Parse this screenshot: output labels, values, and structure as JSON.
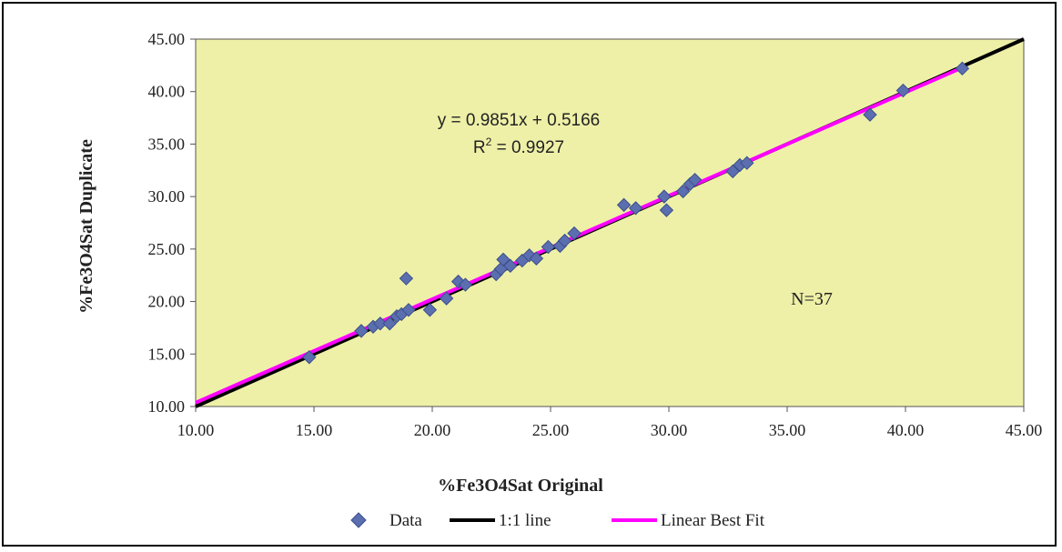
{
  "chart_data": {
    "type": "scatter",
    "xlabel": "%Fe3O4Sat Original",
    "ylabel": "%Fe3O4Sat Duplicate",
    "xlim": [
      10,
      45
    ],
    "ylim": [
      10,
      45
    ],
    "xticks": [
      10,
      15,
      20,
      25,
      30,
      35,
      40,
      45
    ],
    "yticks": [
      10,
      15,
      20,
      25,
      30,
      35,
      40,
      45
    ],
    "xtick_labels": [
      "10.00",
      "15.00",
      "20.00",
      "25.00",
      "30.00",
      "35.00",
      "40.00",
      "45.00"
    ],
    "ytick_labels": [
      "10.00",
      "15.00",
      "20.00",
      "25.00",
      "30.00",
      "35.00",
      "40.00",
      "45.00"
    ],
    "plot_background": "#eef0a8",
    "grid": false,
    "legend_position": "bottom",
    "series": [
      {
        "name": "Data",
        "kind": "scatter",
        "marker": "diamond",
        "color": "#5b6fb0",
        "points": [
          [
            14.8,
            14.7
          ],
          [
            17.0,
            17.2
          ],
          [
            17.5,
            17.6
          ],
          [
            17.8,
            17.9
          ],
          [
            18.2,
            17.9
          ],
          [
            18.5,
            18.6
          ],
          [
            18.7,
            18.8
          ],
          [
            19.0,
            19.2
          ],
          [
            18.9,
            22.2
          ],
          [
            19.9,
            19.2
          ],
          [
            20.6,
            20.3
          ],
          [
            21.1,
            21.9
          ],
          [
            21.4,
            21.6
          ],
          [
            22.7,
            22.6
          ],
          [
            22.9,
            23.1
          ],
          [
            23.0,
            24.0
          ],
          [
            23.3,
            23.4
          ],
          [
            23.8,
            23.9
          ],
          [
            24.1,
            24.4
          ],
          [
            24.9,
            25.2
          ],
          [
            25.4,
            25.3
          ],
          [
            25.6,
            25.8
          ],
          [
            26.0,
            26.5
          ],
          [
            28.1,
            29.2
          ],
          [
            28.6,
            28.9
          ],
          [
            29.8,
            30.0
          ],
          [
            29.9,
            28.7
          ],
          [
            30.6,
            30.5
          ],
          [
            30.9,
            31.2
          ],
          [
            31.1,
            31.6
          ],
          [
            32.7,
            32.4
          ],
          [
            33.0,
            33.0
          ],
          [
            33.3,
            33.2
          ],
          [
            38.5,
            37.8
          ],
          [
            39.9,
            40.1
          ],
          [
            42.4,
            42.2
          ],
          [
            24.4,
            24.1
          ]
        ]
      },
      {
        "name": "1:1 line",
        "kind": "line",
        "color": "#000000",
        "points": [
          [
            10,
            10
          ],
          [
            45,
            45
          ]
        ]
      },
      {
        "name": "Linear Best Fit",
        "kind": "line",
        "color": "#ff00ff",
        "points": [
          [
            10,
            10.367
          ],
          [
            42.4,
            42.285
          ]
        ]
      }
    ],
    "annotations": {
      "equation": "y = 0.9851x + 0.5166",
      "r2_prefix": "R",
      "r2_sup": "2",
      "r2_value": " = 0.9927",
      "n_label": "N=37"
    }
  }
}
